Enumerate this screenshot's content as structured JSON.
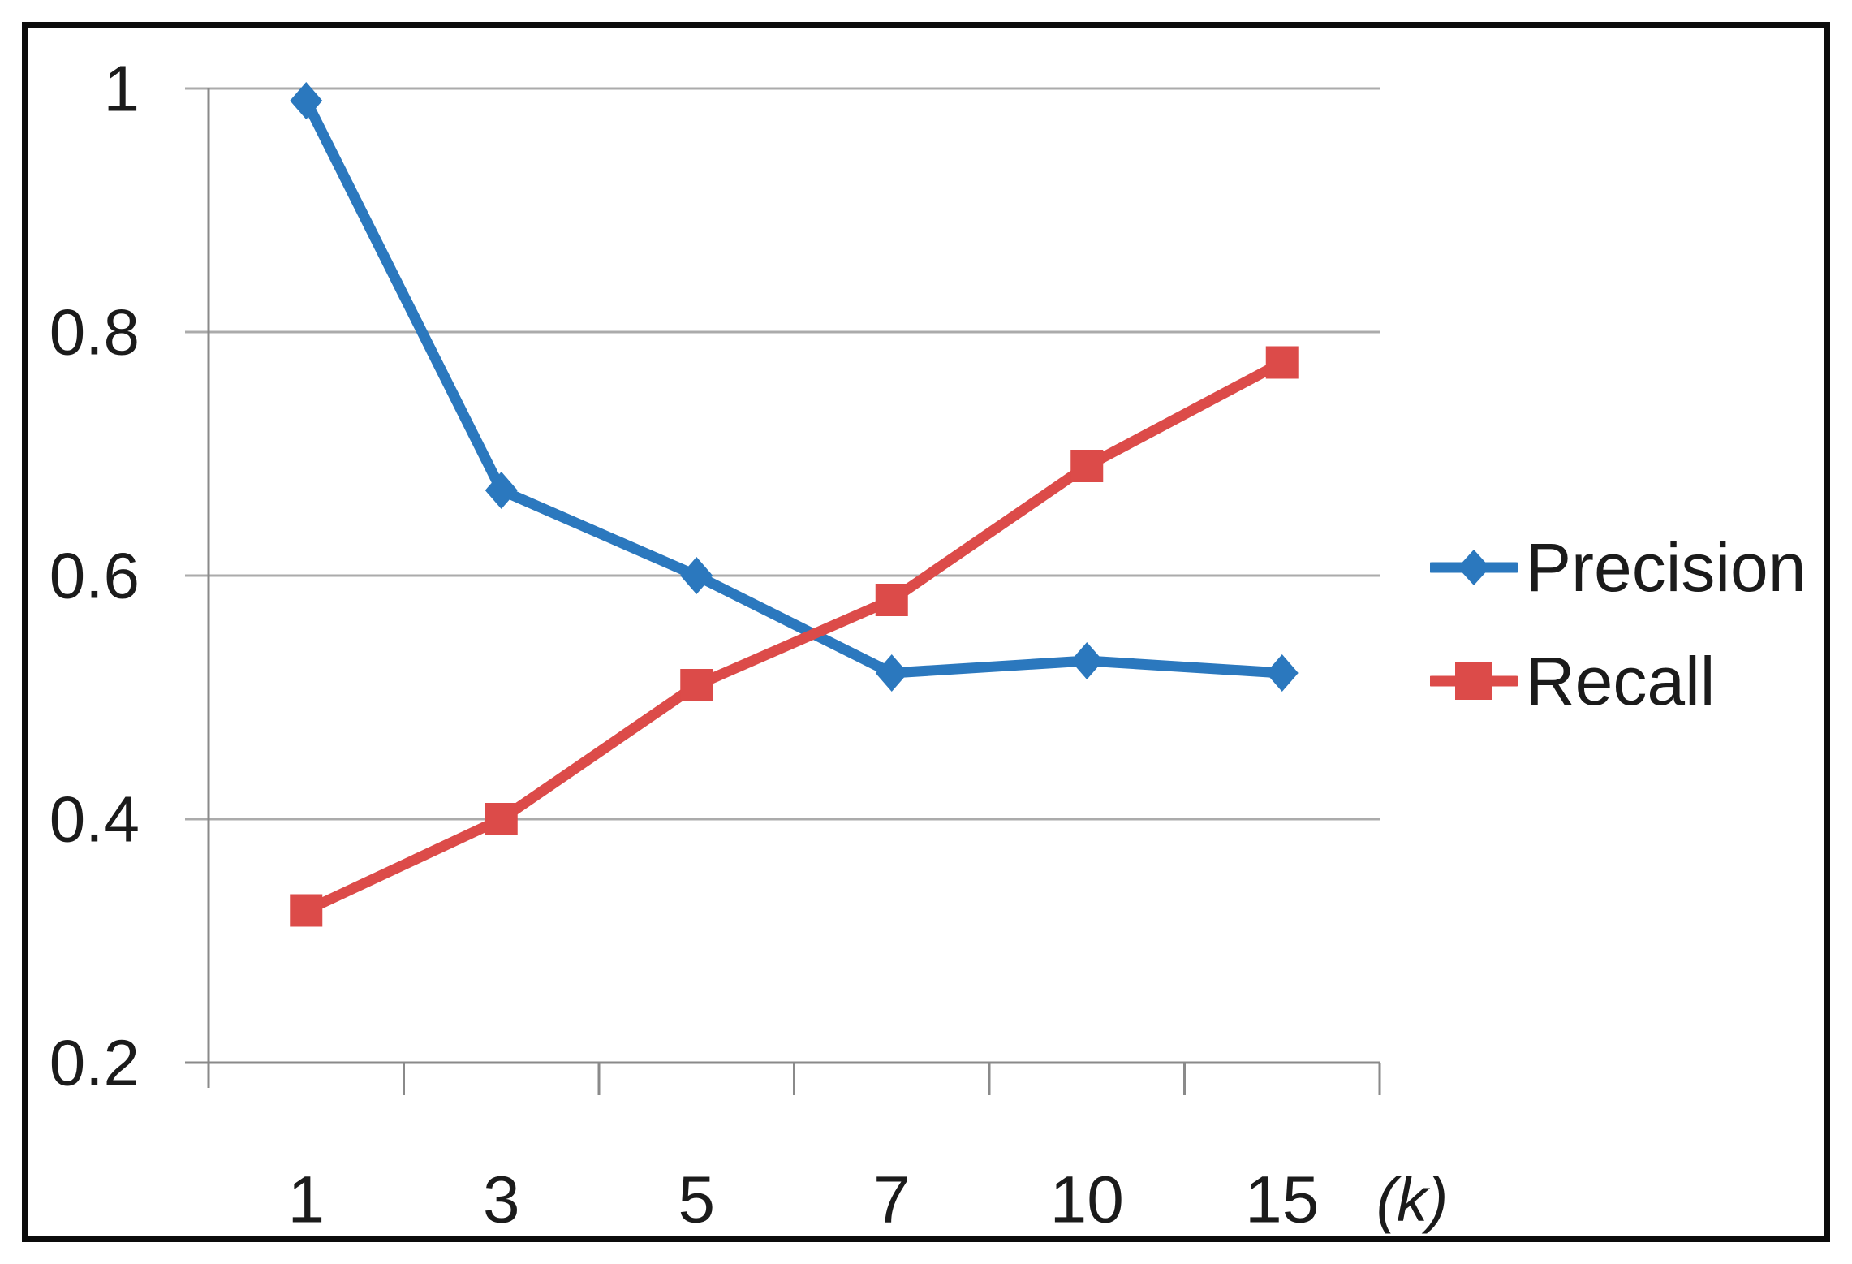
{
  "chart_data": {
    "type": "line",
    "title": "",
    "categories": [
      "1",
      "3",
      "5",
      "7",
      "10",
      "15"
    ],
    "x_axis_unit_label": "(k)",
    "xlabel": "",
    "ylabel": "",
    "y_tick_labels": [
      "1",
      "0.8",
      "0.6",
      "0.4",
      "0.2"
    ],
    "y_tick_values": [
      1.0,
      0.8,
      0.6,
      0.4,
      0.2
    ],
    "ylim": [
      0.2,
      1.0
    ],
    "grid": true,
    "legend_position": "right-middle",
    "series": [
      {
        "name": "Precision",
        "marker": "diamond",
        "color": "#2B78BE",
        "values": [
          0.99,
          0.67,
          0.6,
          0.52,
          0.53,
          0.52
        ]
      },
      {
        "name": "Recall",
        "marker": "square",
        "color": "#DC4B49",
        "values": [
          0.325,
          0.4,
          0.51,
          0.58,
          0.69,
          0.775
        ]
      }
    ],
    "axis_color": "#8a8a8a",
    "gridline_color": "#ababab",
    "text_color": "#1b1b1b"
  }
}
